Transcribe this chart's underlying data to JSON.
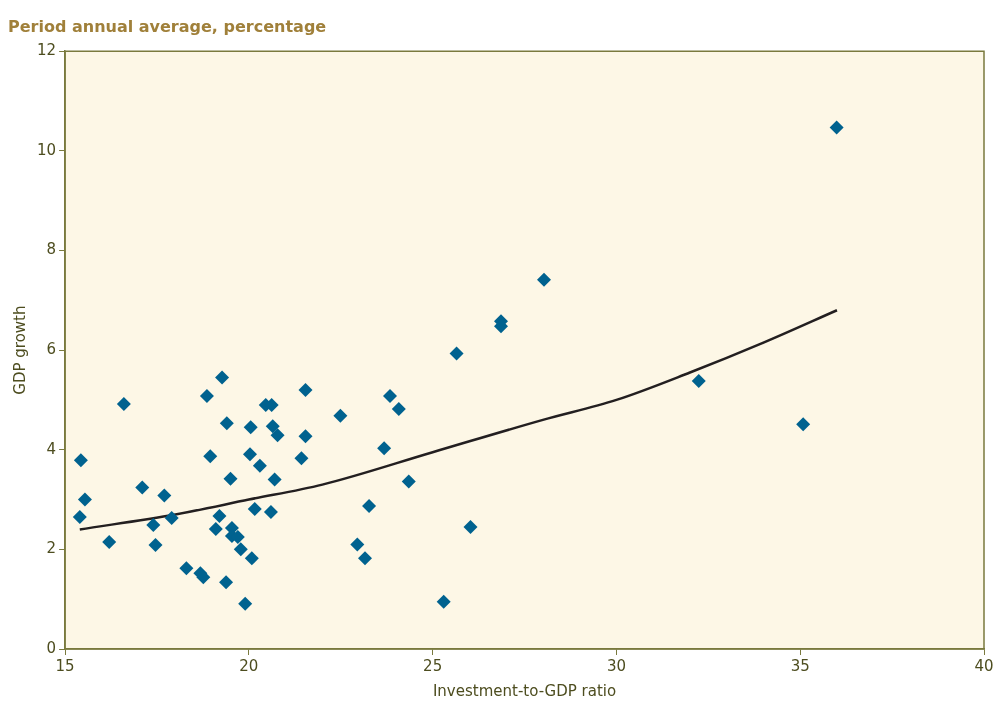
{
  "chart_data": {
    "type": "scatter",
    "title": "Period annual average, percentage",
    "xlabel": "Investment-to-GDP ratio",
    "ylabel": "GDP growth",
    "xlim": [
      15,
      40
    ],
    "xticks": [
      15,
      20,
      25,
      30,
      35,
      40
    ],
    "ylim": [
      0,
      12
    ],
    "yticks": [
      0,
      2,
      4,
      6,
      8,
      10,
      12
    ],
    "grid": false,
    "legend": false,
    "marker": "diamond",
    "series": [
      {
        "type": "scatter",
        "color": "#00628f",
        "x": [
          15.4,
          15.43,
          15.54,
          16.2,
          16.6,
          17.1,
          17.4,
          17.46,
          17.7,
          17.9,
          18.3,
          18.68,
          18.76,
          18.86,
          18.95,
          19.1,
          19.2,
          19.27,
          19.38,
          19.4,
          19.5,
          19.54,
          19.54,
          19.7,
          19.78,
          19.9,
          20.03,
          20.05,
          20.08,
          20.16,
          20.3,
          20.46,
          20.6,
          20.62,
          20.65,
          20.7,
          20.78,
          21.43,
          21.54,
          21.54,
          22.49,
          22.95,
          23.16,
          23.27,
          23.68,
          23.84,
          24.08,
          24.35,
          25.3,
          25.65,
          26.03,
          26.86,
          26.86,
          28.03,
          32.24,
          35.08,
          35.99
        ],
        "values": [
          2.65,
          3.79,
          3.0,
          2.15,
          4.92,
          3.24,
          2.49,
          2.09,
          3.08,
          2.63,
          1.62,
          1.52,
          1.44,
          5.08,
          3.87,
          2.41,
          2.67,
          5.45,
          1.34,
          4.53,
          3.42,
          2.43,
          2.27,
          2.25,
          2.0,
          0.91,
          3.91,
          4.45,
          1.82,
          2.81,
          3.68,
          4.9,
          2.75,
          4.9,
          4.47,
          3.4,
          4.29,
          3.83,
          5.2,
          4.27,
          4.68,
          2.1,
          1.82,
          2.87,
          4.03,
          5.08,
          4.82,
          3.36,
          0.95,
          5.93,
          2.45,
          6.58,
          6.48,
          7.41,
          5.38,
          4.51,
          10.47
        ]
      },
      {
        "type": "line",
        "color": "#231f20",
        "marker": "none",
        "x": [
          15.4,
          18,
          20,
          22,
          25,
          28,
          30,
          32,
          34,
          36
        ],
        "values": [
          2.4,
          2.7,
          3.0,
          3.3,
          3.95,
          4.6,
          5.0,
          5.55,
          6.15,
          6.8
        ]
      }
    ]
  }
}
